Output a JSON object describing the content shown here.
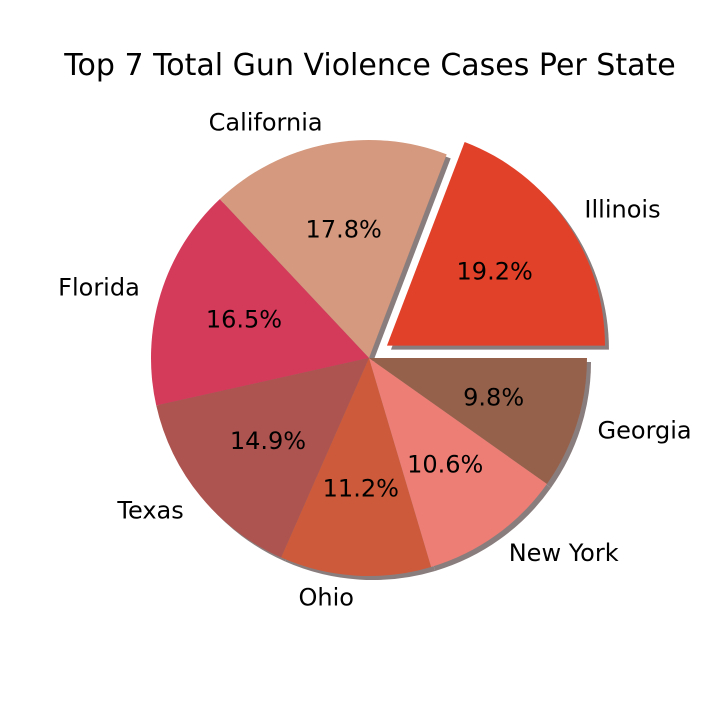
{
  "chart_data": {
    "type": "pie",
    "title": "Top 7 Total Gun Violence Cases Per State",
    "slices": [
      {
        "label": "Illinois",
        "value": 19.2,
        "pct_label": "19.2%",
        "color": "#e24129",
        "explode": true
      },
      {
        "label": "California",
        "value": 17.8,
        "pct_label": "17.8%",
        "color": "#d4997e"
      },
      {
        "label": "Florida",
        "value": 16.5,
        "pct_label": "16.5%",
        "color": "#d43a5a"
      },
      {
        "label": "Texas",
        "value": 14.9,
        "pct_label": "14.9%",
        "color": "#ad5450"
      },
      {
        "label": "Ohio",
        "value": 11.2,
        "pct_label": "11.2%",
        "color": "#cd5a3a"
      },
      {
        "label": "New York",
        "value": 10.6,
        "pct_label": "10.6%",
        "color": "#ec7e75"
      },
      {
        "label": "Georgia",
        "value": 9.8,
        "pct_label": "9.8%",
        "color": "#95614b"
      }
    ],
    "start_angle_deg": 0,
    "direction": "counterclockwise",
    "shadow": true,
    "legend": "none"
  }
}
